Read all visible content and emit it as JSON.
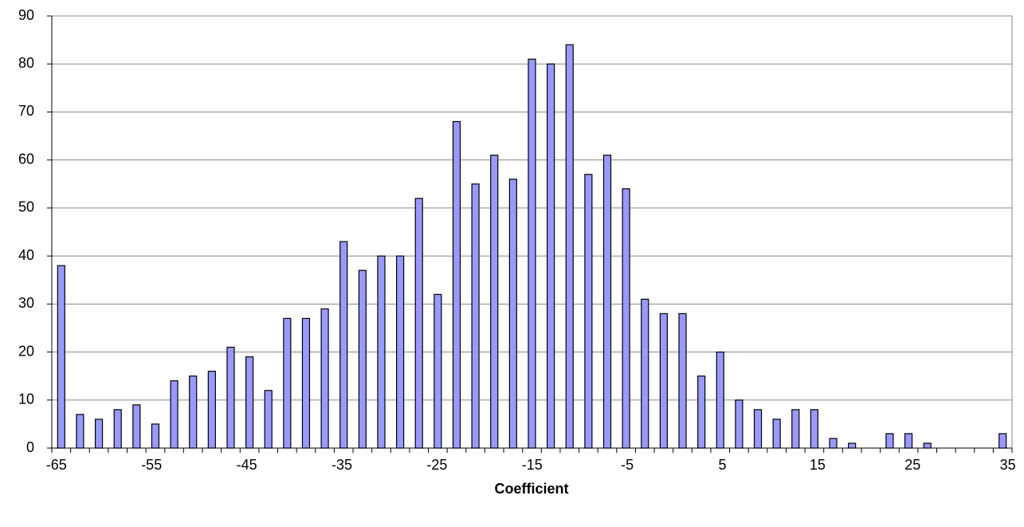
{
  "chart_data": {
    "type": "bar",
    "x_label": "Coefficient",
    "categories": [
      "-65",
      null,
      null,
      null,
      null,
      "-55",
      null,
      null,
      null,
      null,
      "-45",
      null,
      null,
      null,
      null,
      "-35",
      null,
      null,
      null,
      null,
      "-25",
      null,
      null,
      null,
      null,
      "-15",
      null,
      null,
      null,
      null,
      "-5",
      null,
      null,
      null,
      null,
      "5",
      null,
      null,
      null,
      null,
      "15",
      null,
      null,
      null,
      null,
      "25",
      null,
      null,
      null,
      null,
      "35"
    ],
    "values": [
      38,
      7,
      6,
      8,
      9,
      5,
      14,
      15,
      16,
      21,
      19,
      12,
      27,
      27,
      29,
      43,
      37,
      40,
      40,
      52,
      32,
      68,
      55,
      61,
      56,
      81,
      80,
      84,
      57,
      61,
      54,
      31,
      28,
      28,
      15,
      20,
      10,
      8,
      6,
      8,
      8,
      2,
      1,
      0,
      3,
      3,
      1,
      0,
      0,
      0,
      3
    ],
    "color": "#9999ff",
    "ylim": [
      0,
      90
    ],
    "yticks": [
      0,
      10,
      20,
      30,
      40,
      50,
      60,
      70,
      80,
      90
    ],
    "grid": true
  }
}
